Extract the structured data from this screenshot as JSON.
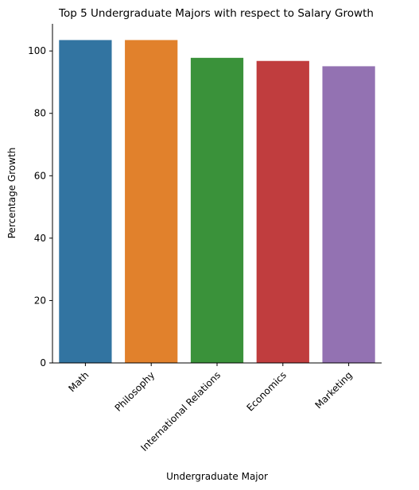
{
  "chart_data": {
    "type": "bar",
    "title": "Top 5 Undergraduate Majors with respect to Salary Growth",
    "xlabel": "Undergraduate Major",
    "ylabel": "Percentage Growth",
    "categories": [
      "Math",
      "Philosophy",
      "International Relations",
      "Economics",
      "Marketing"
    ],
    "values": [
      103.5,
      103.5,
      97.8,
      96.8,
      95.1
    ],
    "colors": [
      "#3274a1",
      "#e1812c",
      "#3a923a",
      "#c03d3e",
      "#9372b2"
    ],
    "ylim": [
      0,
      108.7
    ],
    "yticks": [
      0,
      20,
      40,
      60,
      80,
      100
    ],
    "grid": false,
    "legend": "none"
  }
}
